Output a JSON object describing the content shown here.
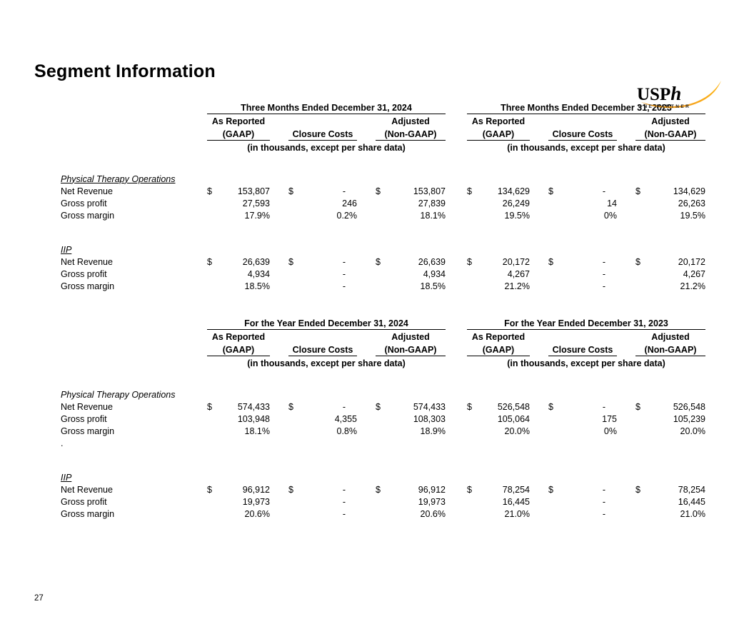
{
  "page": {
    "title": "Segment Information",
    "page_number": "27"
  },
  "logo": {
    "text_main": "USP",
    "text_h": "h",
    "tagline": "ONE PARTNER",
    "swoosh_color_dark": "#dd8500",
    "swoosh_color_light": "#fdb515"
  },
  "table_headers": {
    "as_reported": "As Reported",
    "gaap": "(GAAP)",
    "closure_costs": "Closure Costs",
    "adjusted": "Adjusted",
    "non_gaap": "(Non-GAAP)",
    "units": "(in thousands, except per share data)"
  },
  "tables": [
    {
      "periods": [
        "Three Months Ended December 31, 2024",
        "Three Months Ended December 31, 2023"
      ],
      "sections": [
        {
          "name": "Physical Therapy Operations",
          "underline": true,
          "rows": [
            {
              "label": "Net Revenue",
              "dollar": true,
              "values": [
                "153,807",
                "-",
                "153,807",
                "134,629",
                "-",
                "134,629"
              ]
            },
            {
              "label": "Gross profit",
              "dollar": false,
              "values": [
                "27,593",
                "246",
                "27,839",
                "26,249",
                "14",
                "26,263"
              ]
            },
            {
              "label": "Gross margin",
              "dollar": false,
              "values": [
                "17.9%",
                "0.2%",
                "18.1%",
                "19.5%",
                "0%",
                "19.5%"
              ]
            }
          ]
        },
        {
          "name": "IIP",
          "underline": true,
          "rows": [
            {
              "label": "Net Revenue",
              "dollar": true,
              "values": [
                "26,639",
                "-",
                "26,639",
                "20,172",
                "-",
                "20,172"
              ]
            },
            {
              "label": "Gross profit",
              "dollar": false,
              "values": [
                "4,934",
                "-",
                "4,934",
                "4,267",
                "-",
                "4,267"
              ]
            },
            {
              "label": "Gross margin",
              "dollar": false,
              "values": [
                "18.5%",
                "-",
                "18.5%",
                "21.2%",
                "-",
                "21.2%"
              ]
            }
          ]
        }
      ]
    },
    {
      "periods": [
        "For the Year Ended December 31, 2024",
        "For the Year Ended December 31, 2023"
      ],
      "sections": [
        {
          "name": "Physical Therapy Operations",
          "underline": false,
          "rows": [
            {
              "label": "Net Revenue",
              "dollar": true,
              "values": [
                "574,433",
                "-",
                "574,433",
                "526,548",
                "-",
                "526,548"
              ]
            },
            {
              "label": "Gross profit",
              "dollar": false,
              "values": [
                "103,948",
                "4,355",
                "108,303",
                "105,064",
                "175",
                "105,239"
              ]
            },
            {
              "label": "Gross margin",
              "dollar": false,
              "values": [
                "18.1%",
                "0.8%",
                "18.9%",
                "20.0%",
                "0%",
                "20.0%"
              ]
            },
            {
              "label": ".",
              "dollar": false,
              "values": [
                "",
                "",
                "",
                "",
                "",
                ""
              ]
            }
          ]
        },
        {
          "name": "IIP",
          "underline": true,
          "rows": [
            {
              "label": "Net Revenue",
              "dollar": true,
              "values": [
                "96,912",
                "-",
                "96,912",
                "78,254",
                "-",
                "78,254"
              ]
            },
            {
              "label": "Gross profit",
              "dollar": false,
              "values": [
                "19,973",
                "-",
                "19,973",
                "16,445",
                "-",
                "16,445"
              ]
            },
            {
              "label": "Gross margin",
              "dollar": false,
              "values": [
                "20.6%",
                "-",
                "20.6%",
                "21.0%",
                "-",
                "21.0%"
              ]
            }
          ]
        }
      ]
    }
  ]
}
